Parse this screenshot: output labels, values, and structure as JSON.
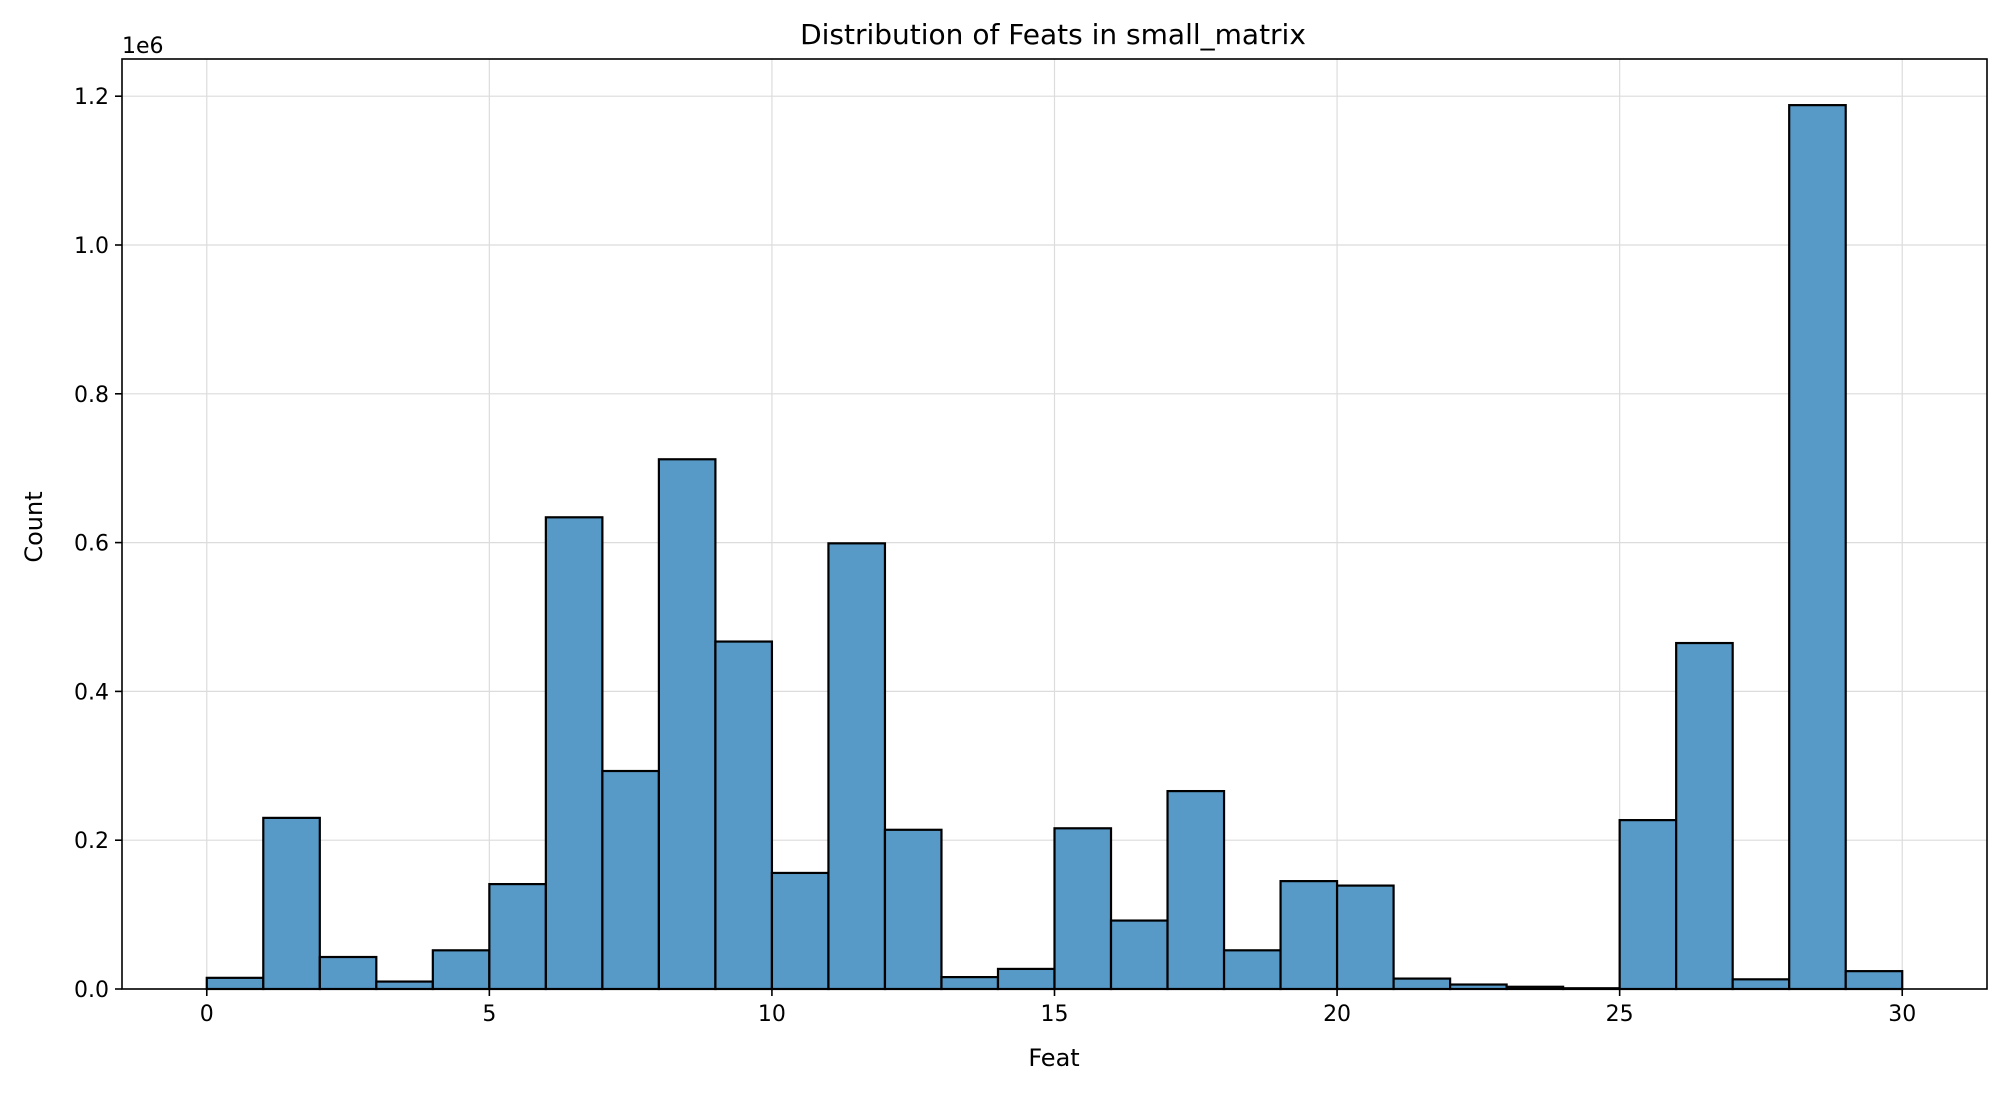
{
  "chart_data": {
    "type": "bar",
    "title": "Distribution of Feats in small_matrix",
    "xlabel": "Feat",
    "ylabel": "Count",
    "y_offset_label": "1e6",
    "bin_edges": [
      0,
      1,
      2,
      3,
      4,
      5,
      6,
      7,
      8,
      9,
      10,
      11,
      12,
      13,
      14,
      15,
      16,
      17,
      18,
      19,
      20,
      21,
      22,
      23,
      24,
      25,
      26,
      27,
      28,
      29,
      30
    ],
    "values": [
      15000,
      230000,
      43000,
      10000,
      52000,
      141000,
      634000,
      293000,
      712000,
      467000,
      156000,
      599000,
      214000,
      16000,
      27000,
      216000,
      92000,
      266000,
      52000,
      145000,
      139000,
      14000,
      6000,
      3000,
      1000,
      227000,
      465000,
      13000,
      1188000,
      24000
    ],
    "xlim": [
      -1.5,
      31.5
    ],
    "ylim": [
      0,
      1250000
    ],
    "x_ticks": [
      0,
      5,
      10,
      15,
      20,
      25,
      30
    ],
    "x_tick_labels": [
      "0",
      "5",
      "10",
      "15",
      "20",
      "25",
      "30"
    ],
    "y_ticks": [
      0,
      200000,
      400000,
      600000,
      800000,
      1000000,
      1200000
    ],
    "y_tick_labels": [
      "0.0",
      "0.2",
      "0.4",
      "0.6",
      "0.8",
      "1.0",
      "1.2"
    ],
    "grid": true,
    "legend": "none",
    "bar_color": "#5799c7",
    "edge_color": "#000000"
  }
}
